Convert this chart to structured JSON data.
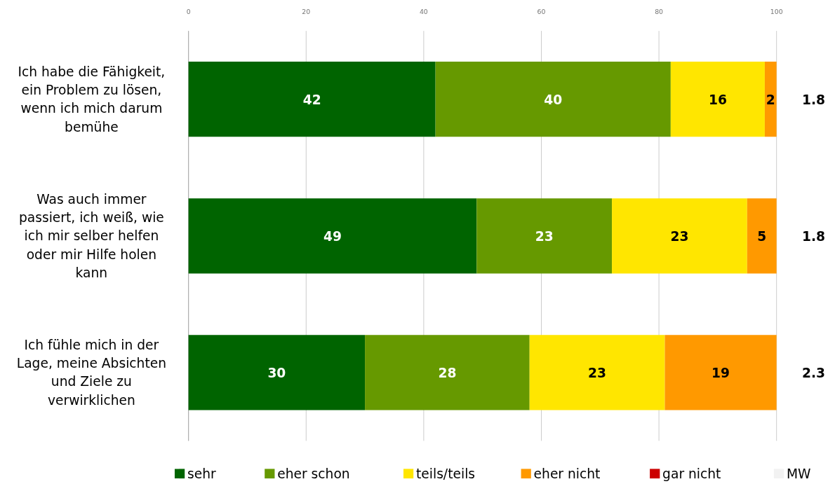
{
  "chart_data": {
    "type": "bar",
    "orientation": "horizontal",
    "stacked": true,
    "categories": [
      "Ich habe die Fähigkeit,\nein Problem zu lösen,\nwenn ich mich darum\nbemühe",
      "Was auch immer\npassiert, ich weiß, wie\nich mir selber helfen\noder mir Hilfe holen\nkann",
      "Ich fühle mich in der\nLage, meine Absichten\nund Ziele zu\nverwirklichen"
    ],
    "series": [
      {
        "name": "sehr",
        "color": "#006400",
        "values": [
          42,
          49,
          30
        ]
      },
      {
        "name": "eher schon",
        "color": "#669900",
        "values": [
          40,
          23,
          28
        ]
      },
      {
        "name": "teils/teils",
        "color": "#ffe600",
        "values": [
          16,
          23,
          23
        ]
      },
      {
        "name": "eher nicht",
        "color": "#ff9900",
        "values": [
          2,
          5,
          19
        ]
      },
      {
        "name": "gar nicht",
        "color": "#cc0000",
        "values": [
          null,
          null,
          null
        ]
      },
      {
        "name": "MW",
        "color": "#f2f2f2",
        "values": [
          null,
          null,
          null
        ],
        "value_labels": [
          "1.8",
          "1.8",
          "2.3"
        ]
      }
    ],
    "xlim": [
      0,
      100
    ],
    "xticks": [
      0,
      20,
      40,
      60,
      80,
      100
    ],
    "grid": "x",
    "legend": "bottom",
    "data_labels": true
  }
}
